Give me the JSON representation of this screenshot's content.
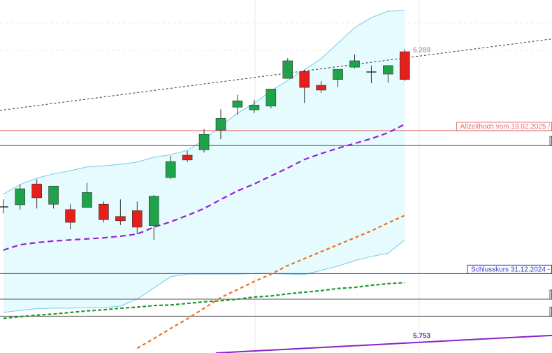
{
  "chart_data": {
    "type": "candlestick",
    "ylim": [
      5.725,
      6.387
    ],
    "xlim": [
      -0.2,
      32.8
    ],
    "candles": [
      {
        "open": 5.999,
        "high": 6.013,
        "low": 5.987,
        "close": 5.999
      },
      {
        "open": 6.003,
        "high": 6.041,
        "low": 5.994,
        "close": 6.033
      },
      {
        "open": 6.042,
        "high": 6.051,
        "low": 5.996,
        "close": 6.016
      },
      {
        "open": 6.004,
        "high": 6.038,
        "low": 5.996,
        "close": 6.038
      },
      {
        "open": 5.994,
        "high": 6.004,
        "low": 5.957,
        "close": 5.97
      },
      {
        "open": 5.998,
        "high": 6.044,
        "low": 5.998,
        "close": 6.026
      },
      {
        "open": 6.004,
        "high": 6.009,
        "low": 5.97,
        "close": 5.975
      },
      {
        "open": 5.981,
        "high": 6.013,
        "low": 5.965,
        "close": 5.973
      },
      {
        "open": 5.992,
        "high": 6.009,
        "low": 5.948,
        "close": 5.961
      },
      {
        "open": 5.964,
        "high": 6.021,
        "low": 5.937,
        "close": 6.019
      },
      {
        "open": 6.054,
        "high": 6.095,
        "low": 6.051,
        "close": 6.084
      },
      {
        "open": 6.096,
        "high": 6.104,
        "low": 6.083,
        "close": 6.087
      },
      {
        "open": 6.106,
        "high": 6.145,
        "low": 6.101,
        "close": 6.135
      },
      {
        "open": 6.143,
        "high": 6.182,
        "low": 6.126,
        "close": 6.165
      },
      {
        "open": 6.186,
        "high": 6.209,
        "low": 6.172,
        "close": 6.198
      },
      {
        "open": 6.181,
        "high": 6.2,
        "low": 6.175,
        "close": 6.19
      },
      {
        "open": 6.188,
        "high": 6.22,
        "low": 6.184,
        "close": 6.22
      },
      {
        "open": 6.24,
        "high": 6.278,
        "low": 6.24,
        "close": 6.273
      },
      {
        "open": 6.253,
        "high": 6.256,
        "low": 6.194,
        "close": 6.223
      },
      {
        "open": 6.227,
        "high": 6.235,
        "low": 6.213,
        "close": 6.218
      },
      {
        "open": 6.238,
        "high": 6.257,
        "low": 6.224,
        "close": 6.257
      },
      {
        "open": 6.261,
        "high": 6.285,
        "low": 6.259,
        "close": 6.273
      },
      {
        "open": 6.252,
        "high": 6.264,
        "low": 6.231,
        "close": 6.252
      },
      {
        "open": 6.248,
        "high": 6.264,
        "low": 6.232,
        "close": 6.264
      },
      {
        "open": 6.29,
        "high": 6.295,
        "low": 6.235,
        "close": 6.238
      }
    ],
    "up_color": "#1fa34a",
    "down_color": "#e3201b",
    "band": {
      "color": "#7cc7ec",
      "fill": "#e6fbfd",
      "upper": [
        6.023,
        6.041,
        6.053,
        6.061,
        6.067,
        6.074,
        6.076,
        6.079,
        6.083,
        6.092,
        6.097,
        6.105,
        6.125,
        6.151,
        6.175,
        6.193,
        6.217,
        6.236,
        6.256,
        6.277,
        6.306,
        6.335,
        6.354,
        6.366,
        6.367
      ],
      "lower": [
        5.801,
        5.805,
        5.808,
        5.809,
        5.809,
        5.81,
        5.81,
        5.813,
        5.826,
        5.847,
        5.868,
        5.873,
        5.873,
        5.873,
        5.873,
        5.874,
        5.874,
        5.873,
        5.872,
        5.88,
        5.888,
        5.898,
        5.906,
        5.912,
        5.937
      ]
    },
    "overlays": [
      {
        "color": "#9a1fd6",
        "dash": "8,5",
        "values": [
          5.918,
          5.928,
          5.932,
          5.935,
          5.937,
          5.939,
          5.941,
          5.944,
          5.948,
          5.961,
          5.971,
          5.983,
          5.996,
          6.013,
          6.029,
          6.042,
          6.057,
          6.072,
          6.088,
          6.099,
          6.109,
          6.118,
          6.127,
          6.138,
          6.154
        ]
      },
      {
        "color": "#f07020",
        "dash": "5,4",
        "values": [
          null,
          null,
          null,
          null,
          null,
          null,
          null,
          null,
          5.734,
          5.752,
          5.771,
          5.789,
          5.809,
          5.829,
          5.844,
          5.859,
          5.873,
          5.889,
          5.902,
          5.915,
          5.928,
          5.941,
          5.954,
          5.969,
          5.983
        ]
      },
      {
        "color": "#1e9a2c",
        "dash": "5,3",
        "values": [
          5.79,
          5.793,
          5.796,
          5.798,
          5.801,
          5.804,
          5.806,
          5.809,
          5.811,
          5.814,
          5.815,
          5.818,
          5.821,
          5.823,
          5.826,
          5.83,
          5.832,
          5.836,
          5.839,
          5.842,
          5.846,
          5.848,
          5.852,
          5.855,
          5.857
        ]
      }
    ],
    "trendlines": [
      {
        "color": "#333333",
        "dash": "3,3",
        "width": 1,
        "x": [
          -0.2,
          32.8
        ],
        "values": [
          6.18,
          6.314
        ]
      },
      {
        "color": "#8a22c8",
        "dash": "",
        "width": 2,
        "x": [
          12.7,
          32.8
        ],
        "values": [
          5.725,
          5.758
        ]
      }
    ],
    "levels": [
      {
        "label": "Allzeithoch vom 19.02.2025 /",
        "value": 6.142,
        "color": "#e36a6a"
      },
      {
        "value": 6.114,
        "color": "#555555"
      },
      {
        "label": "Schlusskurs 31.12.2024 -",
        "value": 5.874,
        "color": "#3a3ac8"
      },
      {
        "value": 5.826,
        "color": "#555555"
      },
      {
        "value": 5.794,
        "color": "#555555"
      }
    ],
    "price_labels": [
      {
        "value": 6.289,
        "color": "#888888"
      },
      {
        "value": 5.753,
        "color": "#6a1fb0"
      }
    ]
  }
}
